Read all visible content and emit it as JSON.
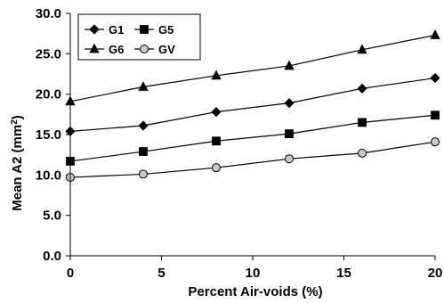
{
  "chart_data": {
    "type": "line",
    "x": [
      0,
      4,
      8,
      12,
      16,
      20
    ],
    "series": [
      {
        "name": "G1",
        "marker": "diamond",
        "color": "#000000",
        "values": [
          15.4,
          16.1,
          17.8,
          18.9,
          20.7,
          22.0
        ]
      },
      {
        "name": "G5",
        "marker": "square",
        "color": "#000000",
        "values": [
          11.7,
          12.9,
          14.2,
          15.1,
          16.5,
          17.4
        ]
      },
      {
        "name": "G6",
        "marker": "triangle",
        "color": "#000000",
        "values": [
          19.1,
          20.9,
          22.3,
          23.5,
          25.5,
          27.3
        ]
      },
      {
        "name": "GV",
        "marker": "circle",
        "color": "#c8c8c8",
        "values": [
          9.7,
          10.1,
          10.9,
          12.0,
          12.7,
          14.1
        ]
      }
    ],
    "xlabel": "Percent Air-voids (%)",
    "ylabel": "Mean A2 (mm",
    "ylabel_superscript": "2",
    "ylabel_close": ")",
    "xlim": [
      0,
      20
    ],
    "ylim": [
      0,
      30
    ],
    "xticks": [
      0,
      5,
      10,
      15,
      20
    ],
    "xtick_labels": [
      "0",
      "5",
      "10",
      "15",
      "20"
    ],
    "yticks": [
      0,
      5,
      10,
      15,
      20,
      25,
      30
    ],
    "ytick_labels": [
      "0.0",
      "5.0",
      "10.0",
      "15.0",
      "20.0",
      "25.0",
      "30.0"
    ],
    "grid": false,
    "legend_position": "top-left",
    "line_color": "#000000"
  }
}
